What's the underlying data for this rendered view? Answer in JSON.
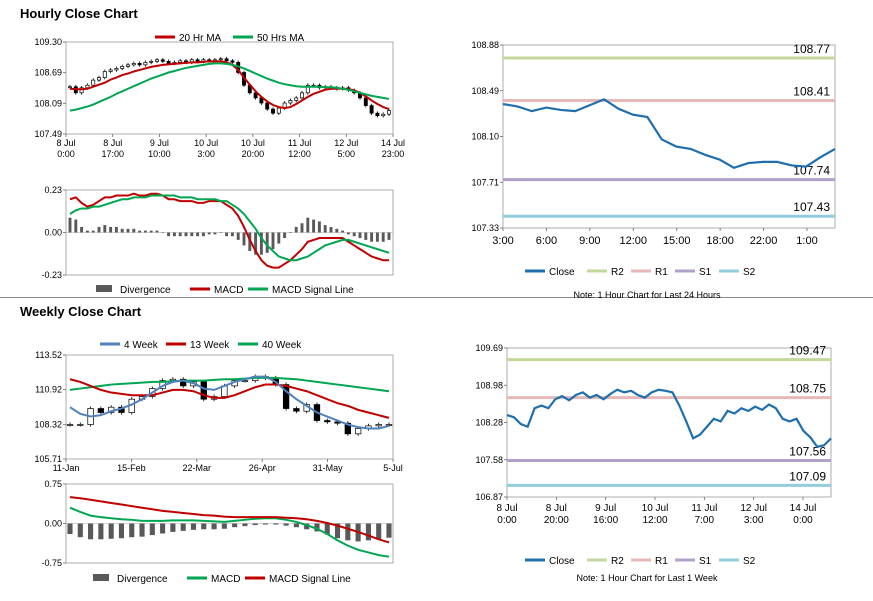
{
  "sections": {
    "hourly_title": "Hourly Close Chart",
    "weekly_title": "Weekly Close Chart"
  },
  "colors": {
    "red": "#c00000",
    "green": "#00a651",
    "blue": "#4f81bd",
    "close": "#1f6fae",
    "r2": "#c4d79b",
    "r1": "#e6b8b7",
    "s1": "#b1a0c7",
    "s2": "#92cddc",
    "bar": "#595959",
    "candle": "#000000"
  },
  "chart_data": [
    {
      "id": "hourly_candle",
      "type": "candlestick",
      "ylim": [
        107.49,
        109.3
      ],
      "yticks": [
        "109.30",
        "108.69",
        "108.09",
        "107.49"
      ],
      "xlabels": [
        [
          "8 Jul",
          "0:00"
        ],
        [
          "8 Jul",
          "17:00"
        ],
        [
          "9 Jul",
          "10:00"
        ],
        [
          "10 Jul",
          "3:00"
        ],
        [
          "10 Jul",
          "20:00"
        ],
        [
          "11 Jul",
          "12:00"
        ],
        [
          "12 Jul",
          "5:00"
        ],
        [
          "14 Jul",
          "23:00"
        ]
      ],
      "legend": [
        "20 Hr MA",
        "50 Hrs MA"
      ],
      "close": [
        108.42,
        108.3,
        108.4,
        108.45,
        108.55,
        108.6,
        108.72,
        108.75,
        108.78,
        108.82,
        108.85,
        108.88,
        108.85,
        108.9,
        108.92,
        108.95,
        108.92,
        108.88,
        108.9,
        108.93,
        108.9,
        108.95,
        108.92,
        108.95,
        108.93,
        108.95,
        108.97,
        108.93,
        108.9,
        108.7,
        108.45,
        108.3,
        108.2,
        108.1,
        107.98,
        107.9,
        108.0,
        108.1,
        108.15,
        108.2,
        108.3,
        108.45,
        108.45,
        108.4,
        108.42,
        108.4,
        108.38,
        108.4,
        108.35,
        108.3,
        108.2,
        108.05,
        107.9,
        107.85,
        107.88,
        107.95
      ],
      "ma20": [
        108.38,
        108.37,
        108.37,
        108.38,
        108.42,
        108.46,
        108.5,
        108.56,
        108.6,
        108.65,
        108.68,
        108.72,
        108.75,
        108.78,
        108.81,
        108.83,
        108.85,
        108.86,
        108.87,
        108.88,
        108.89,
        108.9,
        108.9,
        108.91,
        108.92,
        108.92,
        108.92,
        108.9,
        108.85,
        108.75,
        108.6,
        108.46,
        108.33,
        108.22,
        108.13,
        108.06,
        108.02,
        108.0,
        108.02,
        108.08,
        108.15,
        108.22,
        108.28,
        108.32,
        108.36,
        108.38,
        108.38,
        108.38,
        108.37,
        108.35,
        108.3,
        108.23,
        108.15,
        108.08,
        108.02,
        107.98
      ],
      "ma50": [
        107.95,
        107.97,
        108.0,
        108.03,
        108.07,
        108.12,
        108.17,
        108.22,
        108.28,
        108.33,
        108.38,
        108.43,
        108.48,
        108.53,
        108.58,
        108.62,
        108.66,
        108.7,
        108.73,
        108.76,
        108.79,
        108.81,
        108.83,
        108.85,
        108.87,
        108.88,
        108.88,
        108.87,
        108.85,
        108.82,
        108.78,
        108.73,
        108.68,
        108.63,
        108.58,
        108.54,
        108.5,
        108.47,
        108.45,
        108.43,
        108.42,
        108.42,
        108.42,
        108.42,
        108.41,
        108.41,
        108.4,
        108.38,
        108.36,
        108.33,
        108.3,
        108.27,
        108.24,
        108.22,
        108.2,
        108.18
      ]
    },
    {
      "id": "hourly_macd",
      "type": "macd",
      "ylim": [
        -0.23,
        0.23
      ],
      "yticks": [
        "0.23",
        "0.00",
        "-0.23"
      ],
      "legend": [
        "Divergence",
        "MACD",
        "MACD Signal Line"
      ],
      "macd": [
        0.18,
        0.19,
        0.16,
        0.14,
        0.15,
        0.17,
        0.19,
        0.19,
        0.2,
        0.2,
        0.2,
        0.21,
        0.2,
        0.2,
        0.21,
        0.21,
        0.2,
        0.18,
        0.18,
        0.17,
        0.17,
        0.17,
        0.16,
        0.16,
        0.17,
        0.17,
        0.17,
        0.15,
        0.13,
        0.09,
        0.03,
        -0.04,
        -0.1,
        -0.15,
        -0.18,
        -0.19,
        -0.19,
        -0.17,
        -0.15,
        -0.12,
        -0.09,
        -0.05,
        -0.04,
        -0.03,
        -0.03,
        -0.03,
        -0.03,
        -0.03,
        -0.05,
        -0.07,
        -0.09,
        -0.11,
        -0.13,
        -0.14,
        -0.15,
        -0.15
      ],
      "signal": [
        0.1,
        0.12,
        0.13,
        0.13,
        0.14,
        0.14,
        0.15,
        0.16,
        0.17,
        0.18,
        0.18,
        0.19,
        0.19,
        0.19,
        0.2,
        0.2,
        0.2,
        0.2,
        0.2,
        0.19,
        0.19,
        0.19,
        0.18,
        0.18,
        0.18,
        0.18,
        0.17,
        0.17,
        0.15,
        0.13,
        0.1,
        0.06,
        0.02,
        -0.03,
        -0.07,
        -0.1,
        -0.13,
        -0.14,
        -0.15,
        -0.15,
        -0.14,
        -0.13,
        -0.11,
        -0.09,
        -0.07,
        -0.06,
        -0.05,
        -0.04,
        -0.04,
        -0.05,
        -0.06,
        -0.07,
        -0.08,
        -0.09,
        -0.1,
        -0.11
      ],
      "divergence": [
        0.08,
        0.07,
        0.03,
        0.01,
        0.01,
        0.03,
        0.04,
        0.03,
        0.03,
        0.02,
        0.02,
        0.02,
        0.01,
        0.01,
        0.01,
        0.01,
        0.0,
        -0.02,
        -0.02,
        -0.02,
        -0.02,
        -0.02,
        -0.02,
        -0.02,
        -0.01,
        -0.01,
        0.0,
        -0.02,
        -0.02,
        -0.04,
        -0.07,
        -0.1,
        -0.12,
        -0.12,
        -0.11,
        -0.09,
        -0.06,
        -0.03,
        0.0,
        0.03,
        0.05,
        0.08,
        0.07,
        0.06,
        0.04,
        0.03,
        0.02,
        0.01,
        -0.01,
        -0.02,
        -0.03,
        -0.04,
        -0.05,
        -0.05,
        -0.05,
        -0.04
      ]
    },
    {
      "id": "hourly_line",
      "type": "line",
      "ylim": [
        107.33,
        108.88
      ],
      "yticks": [
        "108.88",
        "108.49",
        "108.10",
        "107.71",
        "107.33"
      ],
      "xlabels": [
        "3:00",
        "6:00",
        "9:00",
        "12:00",
        "15:00",
        "18:00",
        "22:00",
        "1:00"
      ],
      "levels": [
        {
          "name": "R2",
          "value": "108.77"
        },
        {
          "name": "R1",
          "value": "108.41"
        },
        {
          "name": "S1",
          "value": "107.74"
        },
        {
          "name": "S2",
          "value": "107.43"
        }
      ],
      "close": [
        108.38,
        108.36,
        108.32,
        108.35,
        108.33,
        108.32,
        108.37,
        108.42,
        108.34,
        108.29,
        108.27,
        108.08,
        108.02,
        108.0,
        107.95,
        107.91,
        107.84,
        107.88,
        107.89,
        107.89,
        107.86,
        107.85,
        107.93,
        108.0
      ],
      "legend": [
        "Close",
        "R2",
        "R1",
        "S1",
        "S2"
      ],
      "note": "Note: 1 Hour Chart for Last 24 Hours"
    },
    {
      "id": "weekly_candle",
      "type": "candlestick",
      "ylim": [
        105.71,
        113.52
      ],
      "yticks": [
        "113.52",
        "110.92",
        "108.32",
        "105.71"
      ],
      "xlabels": [
        "11-Jan",
        "15-Feb",
        "22-Mar",
        "26-Apr",
        "31-May",
        "5-Jul"
      ],
      "legend": [
        "4 Week",
        "13 Week",
        "40 Week"
      ],
      "close": [
        108.3,
        108.3,
        109.5,
        109.2,
        109.6,
        109.2,
        110.2,
        110.4,
        111.0,
        111.6,
        111.7,
        111.2,
        111.5,
        110.2,
        110.4,
        111.2,
        111.6,
        111.6,
        111.9,
        111.8,
        111.3,
        109.5,
        109.3,
        109.8,
        108.6,
        108.5,
        108.4,
        107.6,
        108.0,
        108.2,
        108.3,
        108.3
      ],
      "w4": [
        109.6,
        109.1,
        108.9,
        109.0,
        109.3,
        109.5,
        109.8,
        110.2,
        110.7,
        111.2,
        111.5,
        111.6,
        111.4,
        111.0,
        110.9,
        111.2,
        111.5,
        111.7,
        111.9,
        111.9,
        111.5,
        110.8,
        110.2,
        109.7,
        109.2,
        108.9,
        108.6,
        108.3,
        108.1,
        108.0,
        108.0,
        108.2
      ],
      "w13": [
        111.7,
        111.5,
        111.2,
        110.9,
        110.7,
        110.6,
        110.5,
        110.5,
        110.5,
        110.7,
        110.9,
        110.9,
        110.8,
        110.5,
        110.3,
        110.3,
        110.5,
        110.8,
        111.1,
        111.3,
        111.3,
        111.2,
        111.0,
        110.8,
        110.5,
        110.2,
        109.9,
        109.7,
        109.4,
        109.2,
        109.0,
        108.8
      ],
      "w40": [
        110.9,
        111.0,
        111.1,
        111.2,
        111.3,
        111.35,
        111.4,
        111.45,
        111.5,
        111.5,
        111.55,
        111.6,
        111.6,
        111.6,
        111.65,
        111.7,
        111.7,
        111.75,
        111.8,
        111.8,
        111.8,
        111.75,
        111.7,
        111.6,
        111.5,
        111.4,
        111.3,
        111.2,
        111.1,
        111.0,
        110.9,
        110.8
      ]
    },
    {
      "id": "weekly_macd",
      "type": "macd",
      "ylim": [
        -0.75,
        0.75
      ],
      "yticks": [
        "0.75",
        "0.00",
        "-0.75"
      ],
      "legend": [
        "Divergence",
        "MACD",
        "MACD Signal Line"
      ],
      "macd": [
        0.3,
        0.22,
        0.15,
        0.12,
        0.1,
        0.08,
        0.07,
        0.05,
        0.05,
        0.05,
        0.06,
        0.06,
        0.06,
        0.05,
        0.04,
        0.03,
        0.05,
        0.07,
        0.09,
        0.1,
        0.1,
        0.07,
        0.03,
        -0.03,
        -0.1,
        -0.2,
        -0.32,
        -0.42,
        -0.5,
        -0.55,
        -0.6,
        -0.63
      ],
      "signal": [
        0.5,
        0.48,
        0.45,
        0.42,
        0.39,
        0.36,
        0.33,
        0.3,
        0.27,
        0.24,
        0.22,
        0.2,
        0.18,
        0.16,
        0.15,
        0.13,
        0.12,
        0.12,
        0.12,
        0.12,
        0.12,
        0.11,
        0.1,
        0.08,
        0.05,
        0.01,
        -0.04,
        -0.1,
        -0.16,
        -0.23,
        -0.3,
        -0.36
      ],
      "divergence": [
        -0.2,
        -0.26,
        -0.3,
        -0.3,
        -0.29,
        -0.28,
        -0.26,
        -0.25,
        -0.22,
        -0.19,
        -0.16,
        -0.14,
        -0.12,
        -0.11,
        -0.11,
        -0.1,
        -0.07,
        -0.05,
        -0.03,
        -0.02,
        -0.02,
        -0.04,
        -0.07,
        -0.11,
        -0.15,
        -0.21,
        -0.28,
        -0.32,
        -0.34,
        -0.32,
        -0.3,
        -0.27
      ]
    },
    {
      "id": "weekly_line",
      "type": "line",
      "ylim": [
        106.87,
        109.69
      ],
      "yticks": [
        "109.69",
        "108.98",
        "108.28",
        "107.58",
        "106.87"
      ],
      "xlabels": [
        [
          "8 Jul",
          "0:00"
        ],
        [
          "8 Jul",
          "20:00"
        ],
        [
          "9 Jul",
          "16:00"
        ],
        [
          "10 Jul",
          "12:00"
        ],
        [
          "11 Jul",
          "7:00"
        ],
        [
          "12 Jul",
          "3:00"
        ],
        [
          "14 Jul",
          "0:00"
        ]
      ],
      "levels": [
        {
          "name": "R2",
          "value": "109.47"
        },
        {
          "name": "R1",
          "value": "108.75"
        },
        {
          "name": "S1",
          "value": "107.56"
        },
        {
          "name": "S2",
          "value": "107.09"
        }
      ],
      "close": [
        108.42,
        108.38,
        108.25,
        108.2,
        108.55,
        108.6,
        108.55,
        108.72,
        108.78,
        108.7,
        108.8,
        108.85,
        108.75,
        108.8,
        108.72,
        108.82,
        108.9,
        108.85,
        108.88,
        108.8,
        108.75,
        108.85,
        108.9,
        108.88,
        108.85,
        108.6,
        108.3,
        107.98,
        108.05,
        108.2,
        108.35,
        108.3,
        108.5,
        108.45,
        108.55,
        108.5,
        108.58,
        108.52,
        108.62,
        108.55,
        108.35,
        108.3,
        108.35,
        108.12,
        108.0,
        107.82,
        107.85,
        107.98
      ],
      "legend": [
        "Close",
        "R2",
        "R1",
        "S1",
        "S2"
      ],
      "note": "Note: 1 Hour Chart for Last 1 Week"
    }
  ]
}
